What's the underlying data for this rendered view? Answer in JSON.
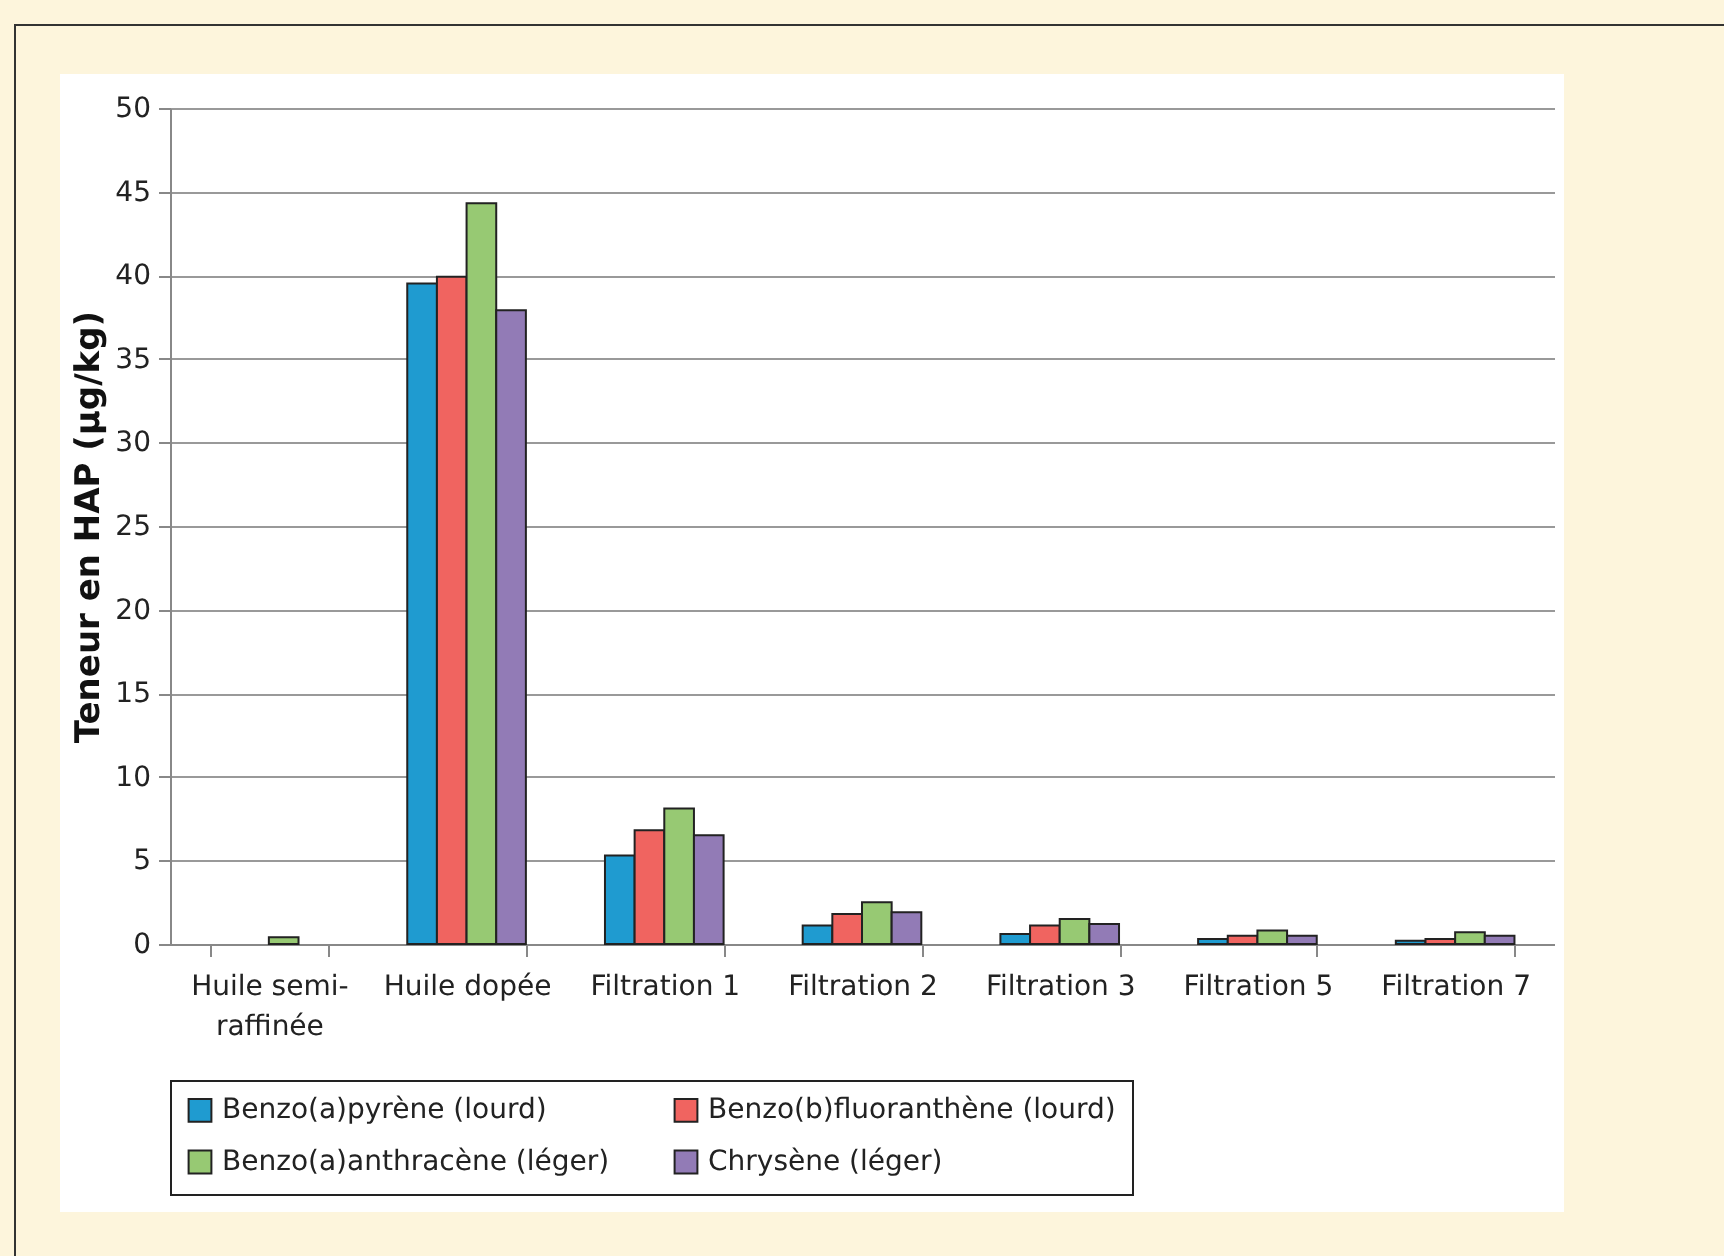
{
  "chart_data": {
    "type": "bar",
    "ylabel": "Teneur en HAP (µg/kg)",
    "categories": [
      "Huile semi-raffinée",
      "Huile dopée",
      "Filtration 1",
      "Filtration 2",
      "Filtration 3",
      "Filtration 5",
      "Filtration 7"
    ],
    "series": [
      {
        "name": "Benzo(a)pyrène (lourd)",
        "color": "#1f9bd0",
        "values": [
          null,
          39.5,
          5.3,
          1.1,
          0.6,
          0.3,
          0.2
        ]
      },
      {
        "name": "Benzo(b)fluoranthène (lourd)",
        "color": "#f06460",
        "values": [
          null,
          39.9,
          6.8,
          1.8,
          1.1,
          0.5,
          0.3
        ]
      },
      {
        "name": "Benzo(a)anthracène (léger)",
        "color": "#97c973",
        "values": [
          0.4,
          44.3,
          8.1,
          2.5,
          1.5,
          0.8,
          0.7
        ]
      },
      {
        "name": "Chrysène (léger)",
        "color": "#927bb6",
        "values": [
          null,
          37.9,
          6.5,
          1.9,
          1.2,
          0.5,
          0.5
        ]
      }
    ],
    "ylim": [
      0,
      50
    ],
    "yticks": [
      0,
      5,
      10,
      15,
      20,
      25,
      30,
      35,
      40,
      45,
      50
    ],
    "grid": "y",
    "legend": "bottom"
  }
}
